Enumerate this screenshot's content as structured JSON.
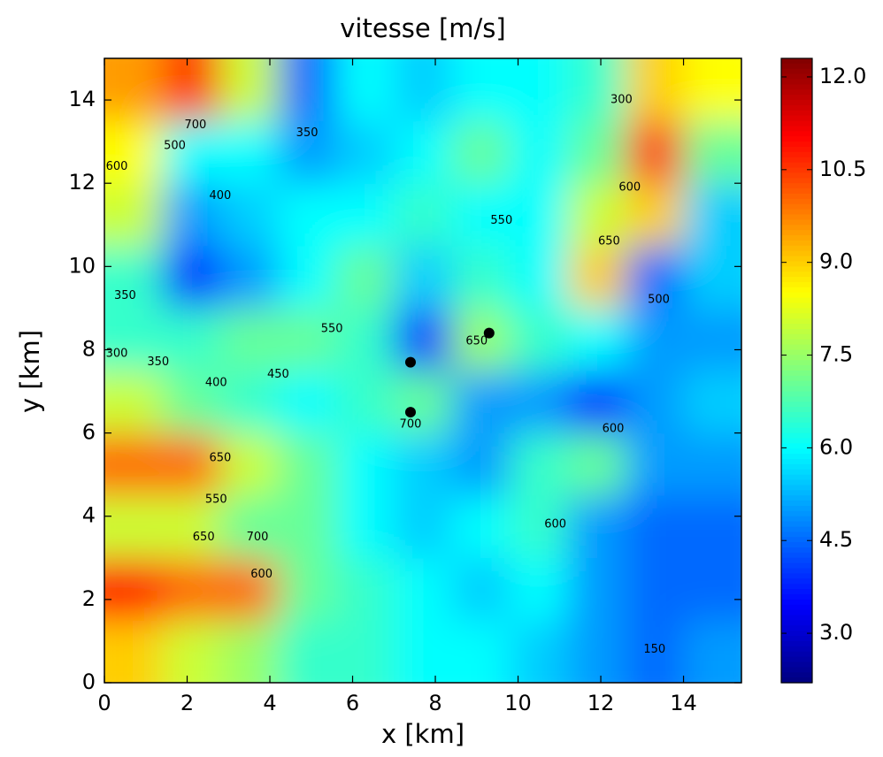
{
  "chart_data": {
    "type": "heatmap",
    "title": "vitesse [m/s]",
    "xlabel": "x [km]",
    "ylabel": "y [km]",
    "xlim": [
      0,
      15.4
    ],
    "ylim": [
      0,
      15
    ],
    "xticks": [
      0,
      2,
      4,
      6,
      8,
      10,
      12,
      14
    ],
    "yticks": [
      0,
      2,
      4,
      6,
      8,
      10,
      12,
      14
    ],
    "x": [
      0.7,
      2.1,
      3.5,
      4.9,
      6.3,
      7.7,
      9.1,
      10.5,
      11.9,
      13.3,
      14.7
    ],
    "y": [
      0.75,
      2.25,
      3.75,
      5.25,
      6.75,
      8.25,
      9.75,
      11.25,
      12.75,
      14.25
    ],
    "z": [
      [
        9,
        8,
        7.5,
        6.5,
        6.5,
        6,
        6,
        5.5,
        5,
        4.5,
        5
      ],
      [
        11,
        10,
        10,
        7,
        6.5,
        6,
        5.5,
        6,
        5,
        4.5,
        4.5
      ],
      [
        8,
        8,
        7,
        7,
        6,
        5.5,
        6,
        6.5,
        5,
        4.5,
        4.5
      ],
      [
        10,
        10,
        8,
        7,
        6,
        5.5,
        5,
        6.5,
        7,
        5,
        5
      ],
      [
        8,
        7,
        6.5,
        6,
        6.5,
        7,
        5,
        5,
        4,
        5,
        5.5
      ],
      [
        6.5,
        6.5,
        7,
        7,
        6.5,
        4,
        7.5,
        6.5,
        6,
        5,
        5
      ],
      [
        6.5,
        4,
        5,
        6,
        7,
        5.5,
        6.5,
        6,
        9,
        4.5,
        5.5
      ],
      [
        8,
        5,
        5.5,
        6,
        6,
        6.5,
        6,
        6,
        8,
        9,
        5.5
      ],
      [
        8.5,
        6,
        6,
        5,
        5.5,
        6,
        7,
        6,
        7,
        10.5,
        7
      ],
      [
        9.5,
        10.5,
        8,
        4.5,
        6,
        5.5,
        6,
        6,
        6.5,
        9,
        8.5
      ]
    ],
    "clim": [
      2.2,
      12.3
    ],
    "colormap": "jet",
    "cticks": [
      {
        "value": 3,
        "label": "3.0"
      },
      {
        "value": 4.5,
        "label": "4.5"
      },
      {
        "value": 6,
        "label": "6.0"
      },
      {
        "value": 7.5,
        "label": "7.5"
      },
      {
        "value": 9,
        "label": "9.0"
      },
      {
        "value": 10.5,
        "label": "10.5"
      },
      {
        "value": 12,
        "label": "12.0"
      }
    ],
    "points": {
      "x": [
        7.4,
        7.4,
        9.3
      ],
      "y": [
        7.7,
        6.5,
        8.4
      ],
      "color": "#000000"
    },
    "annotations": [
      {
        "x": 2.2,
        "y": 13.4,
        "text": "700"
      },
      {
        "x": 1.7,
        "y": 12.9,
        "text": "500"
      },
      {
        "x": 0.3,
        "y": 12.4,
        "text": "600"
      },
      {
        "x": 2.8,
        "y": 11.7,
        "text": "400"
      },
      {
        "x": 0.5,
        "y": 9.3,
        "text": "350"
      },
      {
        "x": 0.3,
        "y": 7.9,
        "text": "300"
      },
      {
        "x": 1.3,
        "y": 7.7,
        "text": "350"
      },
      {
        "x": 2.7,
        "y": 7.2,
        "text": "400"
      },
      {
        "x": 4.2,
        "y": 7.4,
        "text": "450"
      },
      {
        "x": 5.5,
        "y": 8.5,
        "text": "550"
      },
      {
        "x": 2.8,
        "y": 5.4,
        "text": "650"
      },
      {
        "x": 2.7,
        "y": 4.4,
        "text": "550"
      },
      {
        "x": 2.4,
        "y": 3.5,
        "text": "650"
      },
      {
        "x": 3.7,
        "y": 3.5,
        "text": "700"
      },
      {
        "x": 3.8,
        "y": 2.6,
        "text": "600"
      },
      {
        "x": 7.4,
        "y": 6.2,
        "text": "700"
      },
      {
        "x": 9.0,
        "y": 8.2,
        "text": "650"
      },
      {
        "x": 9.6,
        "y": 11.1,
        "text": "550"
      },
      {
        "x": 12.7,
        "y": 11.9,
        "text": "600"
      },
      {
        "x": 12.2,
        "y": 10.6,
        "text": "650"
      },
      {
        "x": 13.4,
        "y": 9.2,
        "text": "500"
      },
      {
        "x": 12.3,
        "y": 6.1,
        "text": "600"
      },
      {
        "x": 10.9,
        "y": 3.8,
        "text": "600"
      },
      {
        "x": 13.3,
        "y": 0.8,
        "text": "150"
      },
      {
        "x": 12.5,
        "y": 14.0,
        "text": "300"
      },
      {
        "x": 4.9,
        "y": 13.2,
        "text": "350"
      }
    ]
  }
}
